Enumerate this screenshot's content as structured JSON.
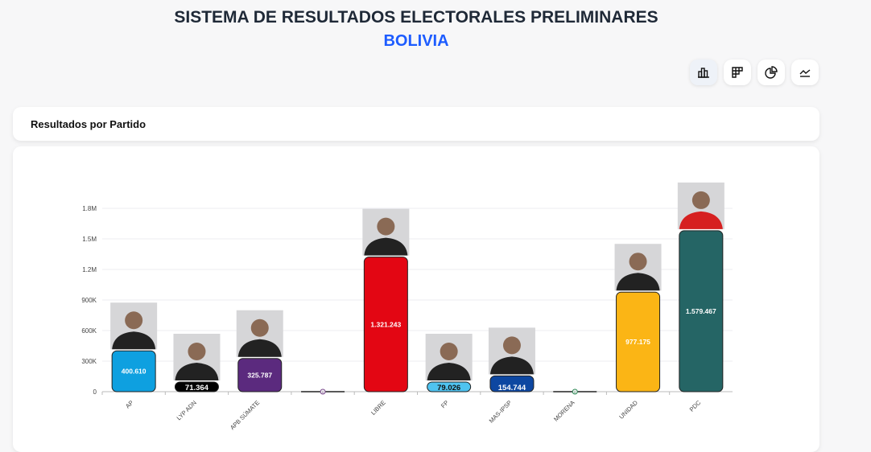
{
  "header": {
    "title": "SISTEMA DE RESULTADOS ELECTORALES PRELIMINARES",
    "subtitle": "BOLIVIA"
  },
  "toolbar": [
    {
      "icon": "bar-chart-icon",
      "active": true
    },
    {
      "icon": "grid-chart-icon",
      "active": false
    },
    {
      "icon": "pie-chart-icon",
      "active": false
    },
    {
      "icon": "line-chart-icon",
      "active": false
    }
  ],
  "section_title": "Resultados por Partido",
  "chart_data": {
    "type": "bar",
    "title": "",
    "xlabel": "",
    "ylabel": "",
    "ylim": [
      0,
      1800000
    ],
    "grid": true,
    "yticks": [
      "0",
      "300K",
      "600K",
      "900K",
      "1.2M",
      "1.5M",
      "1.8M"
    ],
    "categories": [
      "AP",
      "LYP ADN",
      "APB SÚMATE",
      "",
      "LIBRE",
      "FP",
      "MAS-IPSP",
      "MORENA",
      "UNIDAD",
      "PDC"
    ],
    "values": [
      400610,
      71364,
      325787,
      0,
      1321243,
      79026,
      154744,
      0,
      977175,
      1579467
    ],
    "labels": [
      "400.610",
      "71.364",
      "325.787",
      "0",
      "1.321.243",
      "79.026",
      "154.744",
      "0",
      "977.175",
      "1.579.467"
    ],
    "colors": [
      "#0ea0e0",
      "#000000",
      "#5b2a7e",
      "#7b4a8e",
      "#e30613",
      "#4fc3f0",
      "#0d47a1",
      "#2e8b57",
      "#fbb515",
      "#256565"
    ],
    "photos": [
      true,
      true,
      true,
      false,
      true,
      true,
      true,
      false,
      true,
      true
    ]
  }
}
